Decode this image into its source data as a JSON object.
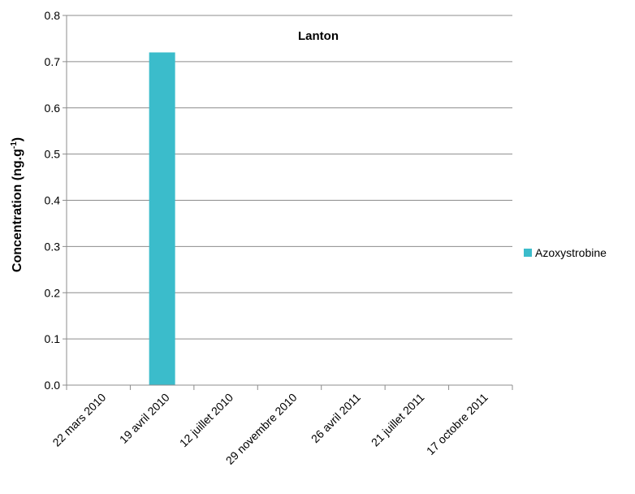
{
  "chart_data": {
    "type": "bar",
    "title": "Lanton",
    "ylabel_main": "Concentration (ng.g",
    "ylabel_sup": "-1",
    "ylabel_close": ")",
    "xlabel": "",
    "ylim": [
      0,
      0.8
    ],
    "y_ticks": [
      "0.0",
      "0.1",
      "0.2",
      "0.3",
      "0.4",
      "0.5",
      "0.6",
      "0.7",
      "0.8"
    ],
    "grid": true,
    "legend_position": "right",
    "categories": [
      "22 mars 2010",
      "19 avril 2010",
      "12 juillet 2010",
      "29 novembre 2010",
      "26 avril 2011",
      "21 juillet 2011",
      "17 octobre 2011"
    ],
    "series": [
      {
        "name": "Azoxystrobine",
        "color": "#3BBCCB",
        "values": [
          0,
          0.72,
          0,
          0,
          0,
          0,
          0
        ]
      }
    ]
  }
}
